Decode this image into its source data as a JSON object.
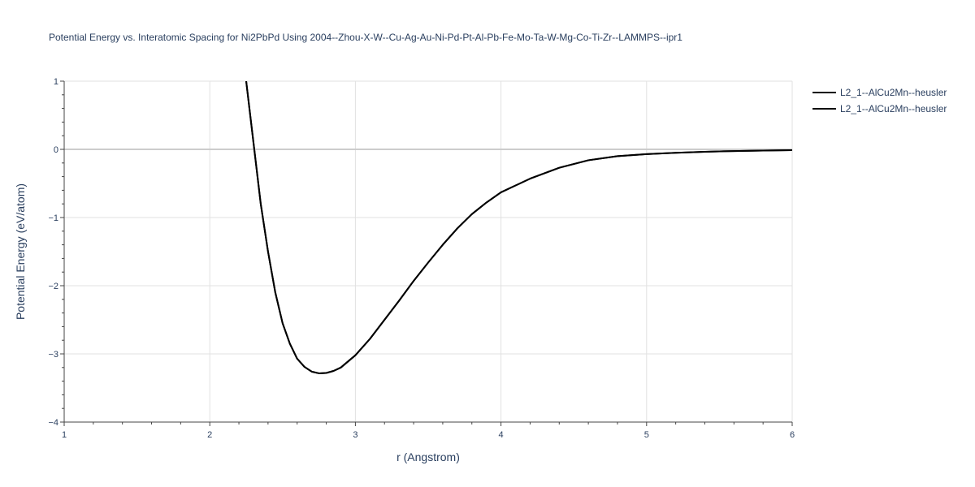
{
  "chart_data": {
    "type": "line",
    "title": "Potential Energy vs. Interatomic Spacing for Ni2PbPd Using 2004--Zhou-X-W--Cu-Ag-Au-Ni-Pd-Pt-Al-Pb-Fe-Mo-Ta-W-Mg-Co-Ti-Zr--LAMMPS--ipr1",
    "xlabel": "r (Angstrom)",
    "ylabel": "Potential Energy (eV/atom)",
    "xlim": [
      1,
      6
    ],
    "ylim": [
      -4,
      1
    ],
    "x_ticks": [
      1,
      2,
      3,
      4,
      5,
      6
    ],
    "y_ticks": [
      1,
      0,
      -1,
      -2,
      -3,
      -4
    ],
    "x_tick_labels": [
      "1",
      "2",
      "3",
      "4",
      "5",
      "6"
    ],
    "y_tick_labels": [
      "1",
      "0",
      "−1",
      "−2",
      "−3",
      "−4"
    ],
    "grid": true,
    "legend_position": "top-right",
    "series": [
      {
        "name": "L2_1--AlCu2Mn--heusler",
        "color": "#000000",
        "x": [
          2.25,
          2.3,
          2.35,
          2.4,
          2.45,
          2.5,
          2.55,
          2.6,
          2.65,
          2.7,
          2.75,
          2.8,
          2.85,
          2.9,
          3.0,
          3.1,
          3.2,
          3.3,
          3.4,
          3.5,
          3.6,
          3.7,
          3.8,
          3.9,
          4.0,
          4.2,
          4.4,
          4.6,
          4.8,
          5.0,
          5.2,
          5.4,
          5.6,
          5.8,
          6.0
        ],
        "y": [
          1.0,
          0.1,
          -0.8,
          -1.5,
          -2.1,
          -2.55,
          -2.85,
          -3.07,
          -3.19,
          -3.26,
          -3.285,
          -3.28,
          -3.25,
          -3.2,
          -3.02,
          -2.78,
          -2.5,
          -2.22,
          -1.93,
          -1.66,
          -1.4,
          -1.16,
          -0.95,
          -0.78,
          -0.63,
          -0.43,
          -0.27,
          -0.16,
          -0.1,
          -0.07,
          -0.05,
          -0.035,
          -0.025,
          -0.018,
          -0.012
        ]
      },
      {
        "name": "L2_1--AlCu2Mn--heusler",
        "color": "#000000",
        "x": [
          2.25,
          2.3,
          2.35,
          2.4,
          2.45,
          2.5,
          2.55,
          2.6,
          2.65,
          2.7,
          2.75,
          2.8,
          2.85,
          2.9,
          3.0,
          3.1,
          3.2,
          3.3,
          3.4,
          3.5,
          3.6,
          3.7,
          3.8,
          3.9,
          4.0,
          4.2,
          4.4,
          4.6,
          4.8,
          5.0,
          5.2,
          5.4,
          5.6,
          5.8,
          6.0
        ],
        "y": [
          1.0,
          0.1,
          -0.8,
          -1.5,
          -2.1,
          -2.55,
          -2.85,
          -3.07,
          -3.19,
          -3.26,
          -3.285,
          -3.28,
          -3.25,
          -3.2,
          -3.02,
          -2.78,
          -2.5,
          -2.22,
          -1.93,
          -1.66,
          -1.4,
          -1.16,
          -0.95,
          -0.78,
          -0.63,
          -0.43,
          -0.27,
          -0.16,
          -0.1,
          -0.07,
          -0.05,
          -0.035,
          -0.025,
          -0.018,
          -0.012
        ]
      }
    ]
  }
}
